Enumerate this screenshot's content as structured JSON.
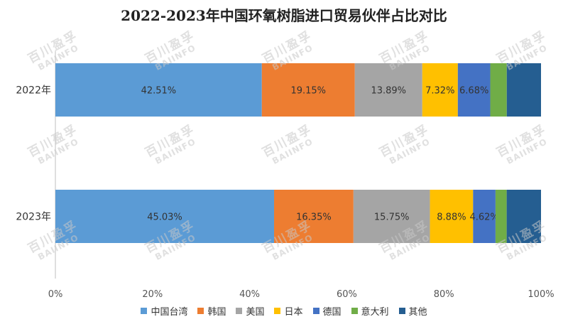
{
  "watermark": {
    "cn": "百川盈孚",
    "en": "BAIINFO"
  },
  "chart_data": {
    "type": "bar",
    "orientation": "horizontal",
    "stacked": true,
    "percent_stacked": true,
    "title": "2022-2023年中国环氧树脂进口贸易伙伴占比对比",
    "categories": [
      "2022年",
      "2023年"
    ],
    "xlim": [
      0,
      100
    ],
    "x_ticks": [
      "0%",
      "20%",
      "40%",
      "60%",
      "80%",
      "100%"
    ],
    "grid": false,
    "legend_position": "bottom",
    "series": [
      {
        "name": "中国台湾",
        "color": "#5b9bd5",
        "values": [
          42.51,
          45.03
        ],
        "labels": [
          "42.51%",
          "45.03%"
        ]
      },
      {
        "name": "韩国",
        "color": "#ed7d31",
        "values": [
          19.15,
          16.35
        ],
        "labels": [
          "19.15%",
          "16.35%"
        ]
      },
      {
        "name": "美国",
        "color": "#a5a5a5",
        "values": [
          13.89,
          15.75
        ],
        "labels": [
          "13.89%",
          "15.75%"
        ]
      },
      {
        "name": "日本",
        "color": "#ffc000",
        "values": [
          7.32,
          8.88
        ],
        "labels": [
          "7.32%",
          "8.88%"
        ]
      },
      {
        "name": "德国",
        "color": "#4472c4",
        "values": [
          6.68,
          4.62
        ],
        "labels": [
          "6.68%",
          "4.62%"
        ]
      },
      {
        "name": "意大利",
        "color": "#70ad47",
        "values": [
          3.4,
          2.3
        ],
        "labels": [
          "",
          ""
        ]
      },
      {
        "name": "其他",
        "color": "#255e91",
        "values": [
          7.05,
          7.07
        ],
        "labels": [
          "",
          ""
        ]
      }
    ]
  }
}
